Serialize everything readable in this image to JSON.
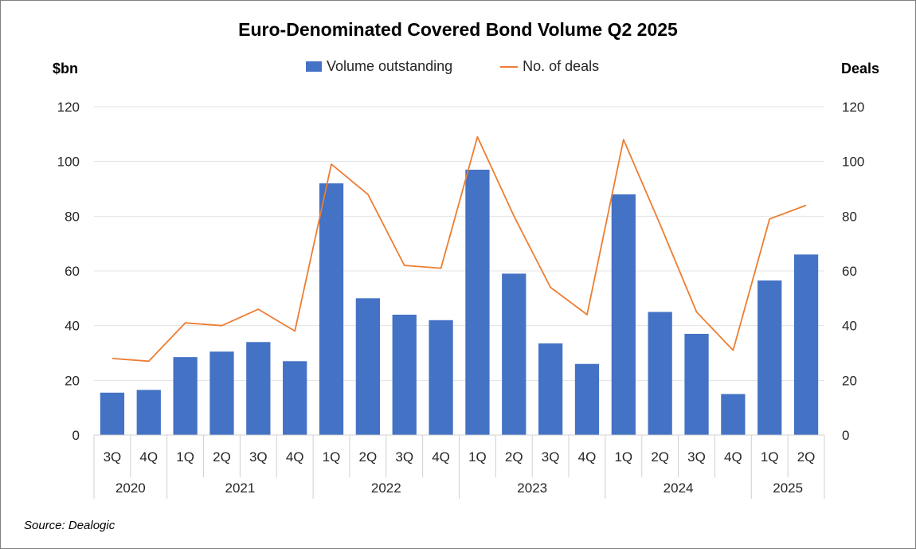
{
  "chart_data": {
    "type": "bar",
    "title": "Euro-Denominated Covered Bond Volume Q2 2025",
    "y_left_label": "$bn",
    "y_right_label": "Deals",
    "ylim": [
      0,
      120
    ],
    "y2lim": [
      0,
      120
    ],
    "yticks": [
      "0",
      "20",
      "40",
      "60",
      "80",
      "100",
      "120"
    ],
    "y2ticks": [
      "0",
      "20",
      "40",
      "60",
      "80",
      "100",
      "120"
    ],
    "grid": true,
    "legend_position": "top-center",
    "categories": [
      "3Q",
      "4Q",
      "1Q",
      "2Q",
      "3Q",
      "4Q",
      "1Q",
      "2Q",
      "3Q",
      "4Q",
      "1Q",
      "2Q",
      "3Q",
      "4Q",
      "1Q",
      "2Q",
      "3Q",
      "4Q",
      "1Q",
      "2Q"
    ],
    "year_groups": [
      {
        "label": "2020",
        "span": 2
      },
      {
        "label": "2021",
        "span": 4
      },
      {
        "label": "2022",
        "span": 4
      },
      {
        "label": "2023",
        "span": 4
      },
      {
        "label": "2024",
        "span": 4
      },
      {
        "label": "2025",
        "span": 2
      }
    ],
    "series": [
      {
        "name": "Volume outstanding",
        "type": "bar",
        "axis": "left",
        "color": "#4472c4",
        "values": [
          15.5,
          16.5,
          28.5,
          30.5,
          34,
          27,
          92,
          50,
          44,
          42,
          97,
          59,
          33.5,
          26,
          88,
          45,
          37,
          15,
          56.5,
          66
        ]
      },
      {
        "name": "No. of deals",
        "type": "line",
        "axis": "right",
        "color": "#ed7d31",
        "values": [
          28,
          27,
          41,
          40,
          46,
          38,
          99,
          88,
          62,
          61,
          109,
          80,
          54,
          44,
          108,
          77,
          45,
          31,
          79,
          84
        ]
      }
    ]
  },
  "source": "Source: Dealogic"
}
